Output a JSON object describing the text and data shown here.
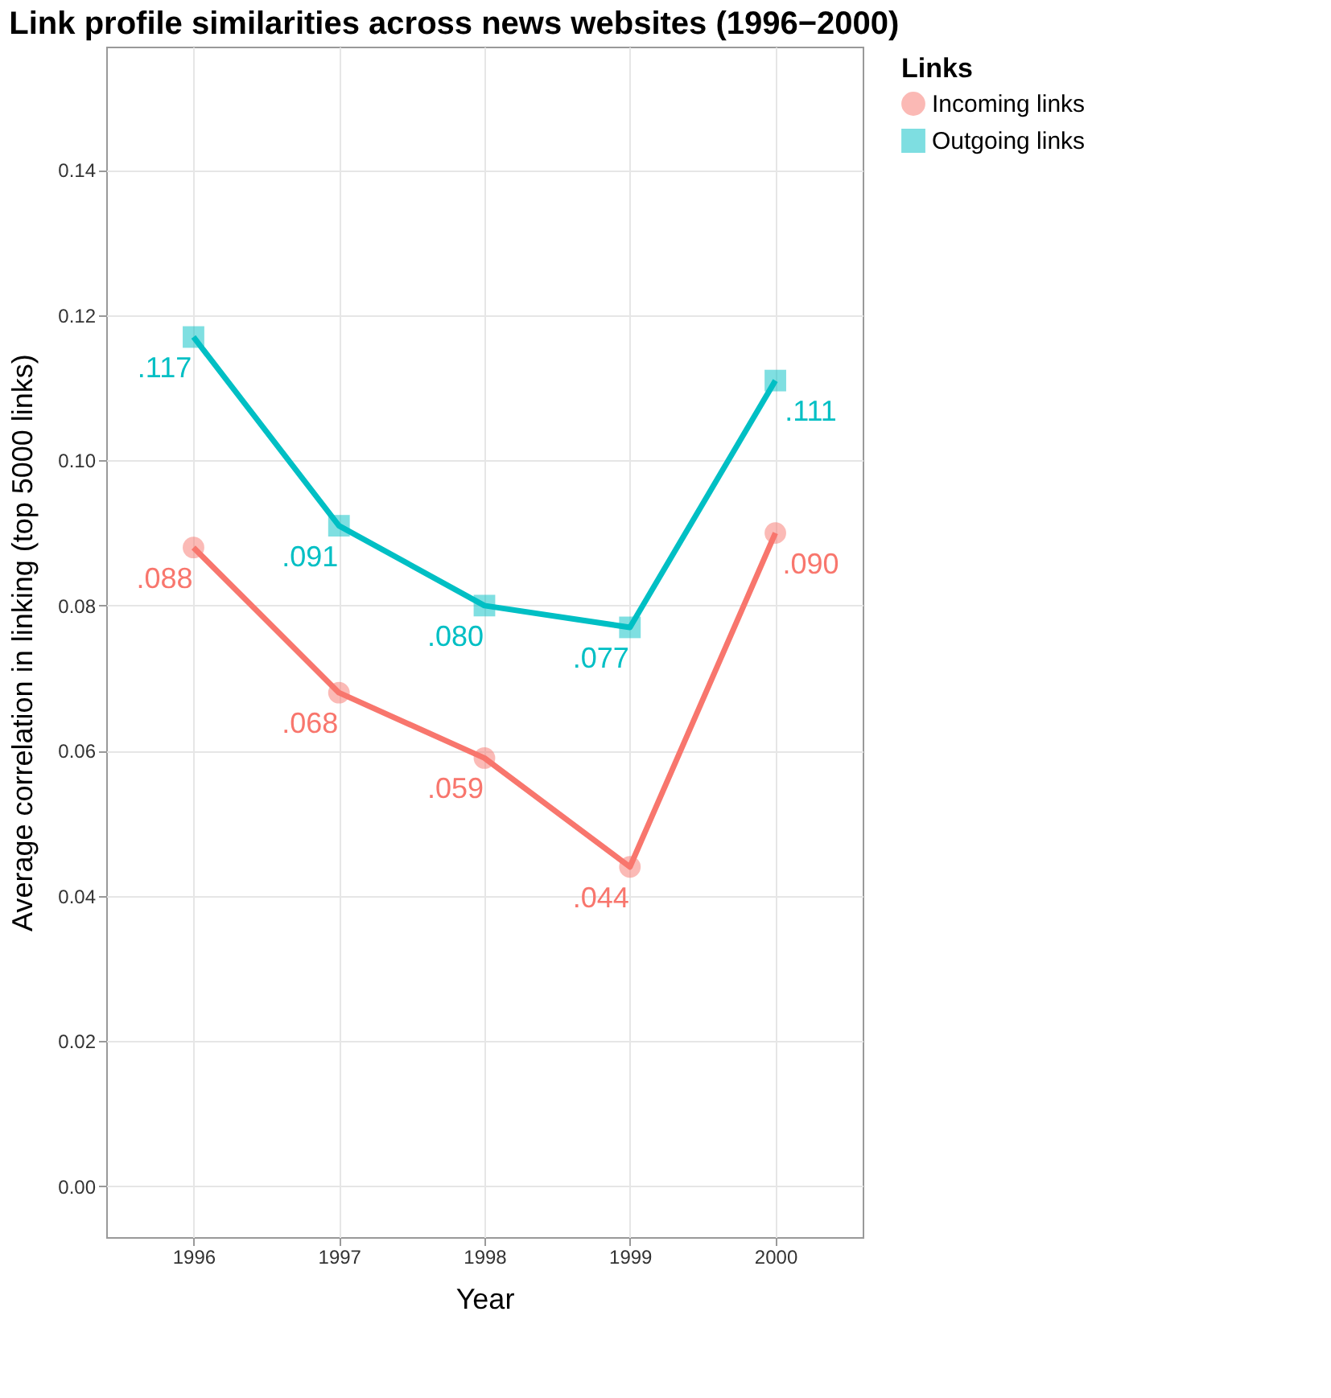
{
  "chart_data": {
    "type": "line",
    "title": "Link profile similarities across news websites (1996−2000)",
    "xlabel": "Year",
    "ylabel": "Average correlation in linking (top 5000 links)",
    "legend_title": "Links",
    "x": [
      1996,
      1997,
      1998,
      1999,
      2000
    ],
    "series": [
      {
        "name": "Incoming links",
        "color": "#f8766d",
        "marker": "circle",
        "values": [
          0.088,
          0.068,
          0.059,
          0.044,
          0.09
        ],
        "value_labels": [
          ".088",
          ".068",
          ".059",
          ".044",
          ".090"
        ]
      },
      {
        "name": "Outgoing links",
        "color": "#00bfc4",
        "marker": "square",
        "values": [
          0.117,
          0.091,
          0.08,
          0.077,
          0.111
        ],
        "value_labels": [
          ".117",
          ".091",
          ".080",
          ".077",
          ".111"
        ]
      }
    ],
    "xlim": [
      1995.4,
      2000.6
    ],
    "xticks": [
      1996,
      1997,
      1998,
      1999,
      2000
    ],
    "ylim": [
      -0.007,
      0.157
    ],
    "yticks": [
      {
        "value": 0,
        "label": "0.00"
      },
      {
        "value": 0.02,
        "label": "0.02"
      },
      {
        "value": 0.04,
        "label": "0.04"
      },
      {
        "value": 0.06,
        "label": "0.06"
      },
      {
        "value": 0.08,
        "label": "0.08"
      },
      {
        "value": 0.1,
        "label": "0.10"
      },
      {
        "value": 0.12,
        "label": "0.12"
      },
      {
        "value": 0.14,
        "label": "0.14"
      }
    ],
    "grid": true,
    "legend": "right",
    "line_style": "solid"
  }
}
